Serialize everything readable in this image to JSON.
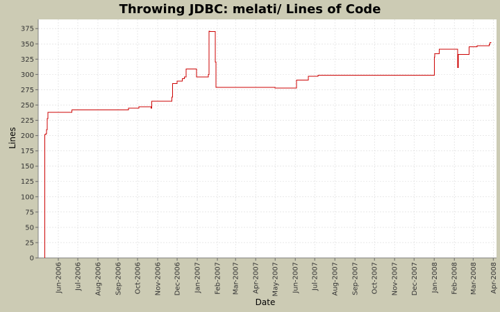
{
  "chart_data": {
    "type": "line",
    "title": "Throwing JDBC: melati/ Lines of Code",
    "xlabel": "Date",
    "ylabel": "Lines",
    "x_type": "date",
    "xlim": [
      "2006-05-01",
      "2008-04-06"
    ],
    "ylim": [
      0,
      390
    ],
    "grid": true,
    "legend": "none",
    "line_color": "#cc0000",
    "plot_background": "#ffffff",
    "grid_color": "#d9d9d9",
    "y_ticks": [
      0,
      25,
      50,
      75,
      100,
      125,
      150,
      175,
      200,
      225,
      250,
      275,
      300,
      325,
      350,
      375
    ],
    "x_ticks": [
      {
        "date": "2006-06-01",
        "label": "Jun-2006"
      },
      {
        "date": "2006-07-01",
        "label": "Jul-2006"
      },
      {
        "date": "2006-08-01",
        "label": "Aug-2006"
      },
      {
        "date": "2006-09-01",
        "label": "Sep-2006"
      },
      {
        "date": "2006-10-01",
        "label": "Oct-2006"
      },
      {
        "date": "2006-11-01",
        "label": "Nov-2006"
      },
      {
        "date": "2006-12-01",
        "label": "Dec-2006"
      },
      {
        "date": "2007-01-01",
        "label": "Jan-2007"
      },
      {
        "date": "2007-02-01",
        "label": "Feb-2007"
      },
      {
        "date": "2007-03-01",
        "label": "Mar-2007"
      },
      {
        "date": "2007-04-01",
        "label": "Apr-2007"
      },
      {
        "date": "2007-05-01",
        "label": "May-2007"
      },
      {
        "date": "2007-06-01",
        "label": "Jun-2007"
      },
      {
        "date": "2007-07-01",
        "label": "Jul-2007"
      },
      {
        "date": "2007-08-01",
        "label": "Aug-2007"
      },
      {
        "date": "2007-09-01",
        "label": "Sep-2007"
      },
      {
        "date": "2007-10-01",
        "label": "Oct-2007"
      },
      {
        "date": "2007-11-01",
        "label": "Nov-2007"
      },
      {
        "date": "2007-12-01",
        "label": "Dec-2007"
      },
      {
        "date": "2008-01-01",
        "label": "Jan-2008"
      },
      {
        "date": "2008-02-01",
        "label": "Feb-2008"
      },
      {
        "date": "2008-03-01",
        "label": "Mar-2008"
      },
      {
        "date": "2008-04-01",
        "label": "Apr-2008"
      }
    ],
    "series": [
      {
        "step": true,
        "points": [
          [
            "2006-05-11",
            0
          ],
          [
            "2006-05-11",
            202
          ],
          [
            "2006-05-13",
            203
          ],
          [
            "2006-05-14",
            210
          ],
          [
            "2006-05-15",
            228
          ],
          [
            "2006-05-16",
            238
          ],
          [
            "2006-06-22",
            242
          ],
          [
            "2006-09-17",
            245
          ],
          [
            "2006-10-03",
            247
          ],
          [
            "2006-10-22",
            245
          ],
          [
            "2006-10-23",
            256
          ],
          [
            "2006-11-23",
            263
          ],
          [
            "2006-11-24",
            285
          ],
          [
            "2006-12-01",
            289
          ],
          [
            "2006-12-09",
            293
          ],
          [
            "2006-12-12",
            296
          ],
          [
            "2006-12-15",
            309
          ],
          [
            "2006-12-31",
            296
          ],
          [
            "2007-01-18",
            300
          ],
          [
            "2007-01-19",
            371
          ],
          [
            "2007-01-20",
            370
          ],
          [
            "2007-01-29",
            320
          ],
          [
            "2007-01-30",
            279
          ],
          [
            "2007-05-01",
            278
          ],
          [
            "2007-06-03",
            291
          ],
          [
            "2007-06-21",
            297
          ],
          [
            "2007-07-06",
            299
          ],
          [
            "2008-01-01",
            328
          ],
          [
            "2008-01-02",
            334
          ],
          [
            "2008-01-09",
            341
          ],
          [
            "2008-02-06",
            311
          ],
          [
            "2008-02-07",
            333
          ],
          [
            "2008-02-24",
            345
          ],
          [
            "2008-03-07",
            347
          ],
          [
            "2008-03-26",
            349
          ],
          [
            "2008-03-27",
            352
          ]
        ]
      }
    ]
  }
}
